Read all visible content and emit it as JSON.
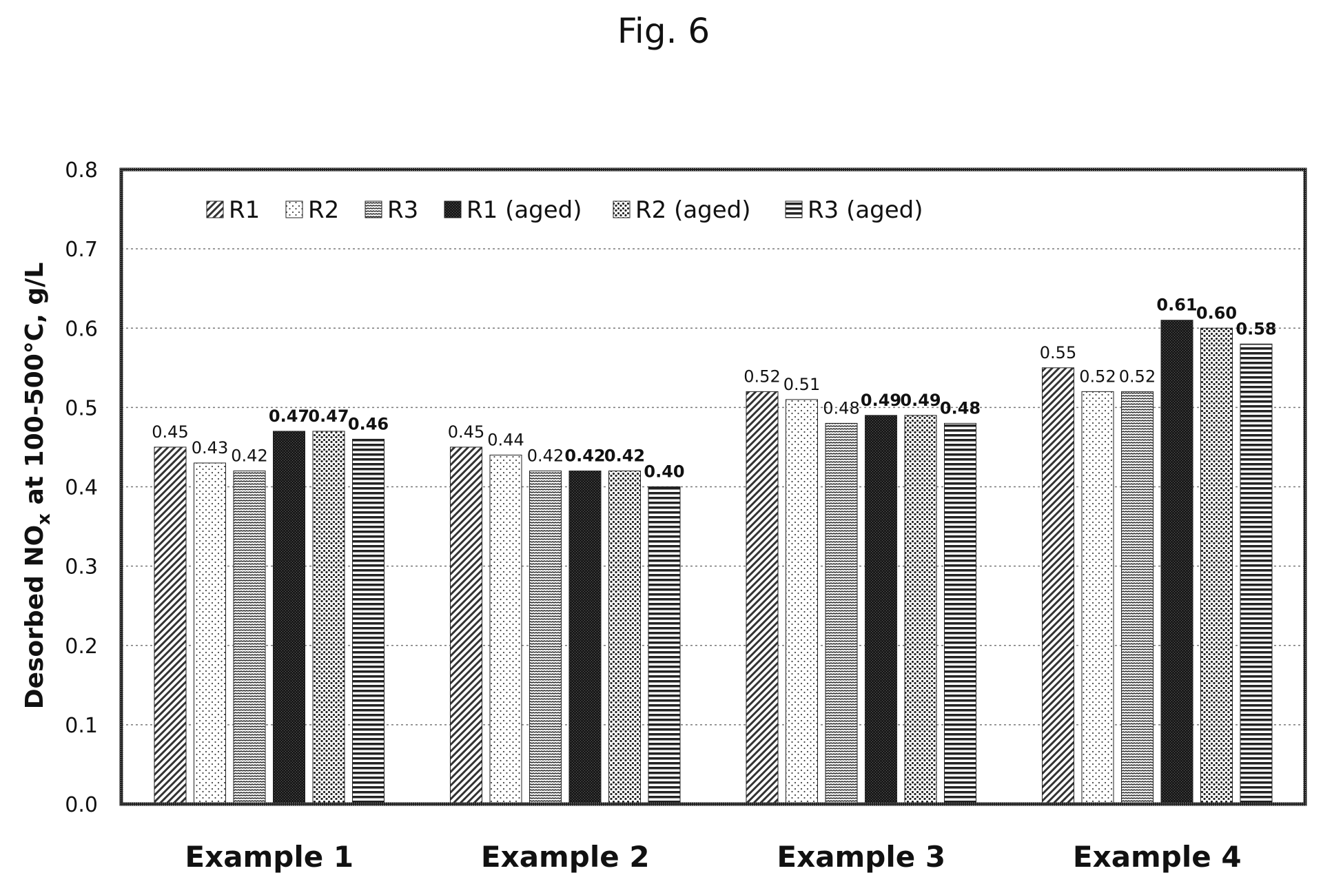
{
  "figure": {
    "title": "Fig. 6"
  },
  "chart_data": {
    "type": "bar",
    "title": "Fig. 6",
    "xlabel": "",
    "ylabel": "Desorbed NO",
    "ylabel_sub": "x",
    "ylabel_rest": " at 100-500°C, g/L",
    "ylim": [
      0,
      0.8
    ],
    "yticks": [
      0.0,
      0.1,
      0.2,
      0.3,
      0.4,
      0.5,
      0.6,
      0.7,
      0.8
    ],
    "ytick_labels": [
      "0.0",
      "0.1",
      "0.2",
      "0.3",
      "0.4",
      "0.5",
      "0.6",
      "0.7",
      "0.8"
    ],
    "grid": true,
    "legend_placement": "top-left",
    "categories": [
      "Example 1",
      "Example 2",
      "Example 3",
      "Example 4"
    ],
    "series": [
      {
        "name": "R1",
        "pattern": "diag-fine",
        "values": [
          0.45,
          0.45,
          0.52,
          0.55
        ],
        "labels": [
          "0.45",
          "0.45",
          "0.52",
          "0.55"
        ]
      },
      {
        "name": "R2",
        "pattern": "dots-sparse",
        "values": [
          0.43,
          0.44,
          0.51,
          0.52
        ],
        "labels": [
          "0.43",
          "0.44",
          "0.51",
          "0.52"
        ]
      },
      {
        "name": "R3",
        "pattern": "hlines-wavy",
        "values": [
          0.42,
          0.42,
          0.48,
          0.52
        ],
        "labels": [
          "0.42",
          "0.42",
          "0.48",
          "0.52"
        ]
      },
      {
        "name": "R1 (aged)",
        "pattern": "dense-dark",
        "values": [
          0.47,
          0.42,
          0.49,
          0.61
        ],
        "labels": [
          "0.47",
          "0.42",
          "0.49",
          "0.61"
        ]
      },
      {
        "name": "R2 (aged)",
        "pattern": "dots-dense",
        "values": [
          0.47,
          0.42,
          0.49,
          0.6
        ],
        "labels": [
          "0.47",
          "0.42",
          "0.49",
          "0.60"
        ]
      },
      {
        "name": "R3 (aged)",
        "pattern": "hlines-thick",
        "values": [
          0.46,
          0.4,
          0.48,
          0.58
        ],
        "labels": [
          "0.46",
          "0.40",
          "0.48",
          "0.58"
        ]
      }
    ],
    "bold_value_series": [
      "R1 (aged)",
      "R2 (aged)",
      "R3 (aged)"
    ]
  }
}
